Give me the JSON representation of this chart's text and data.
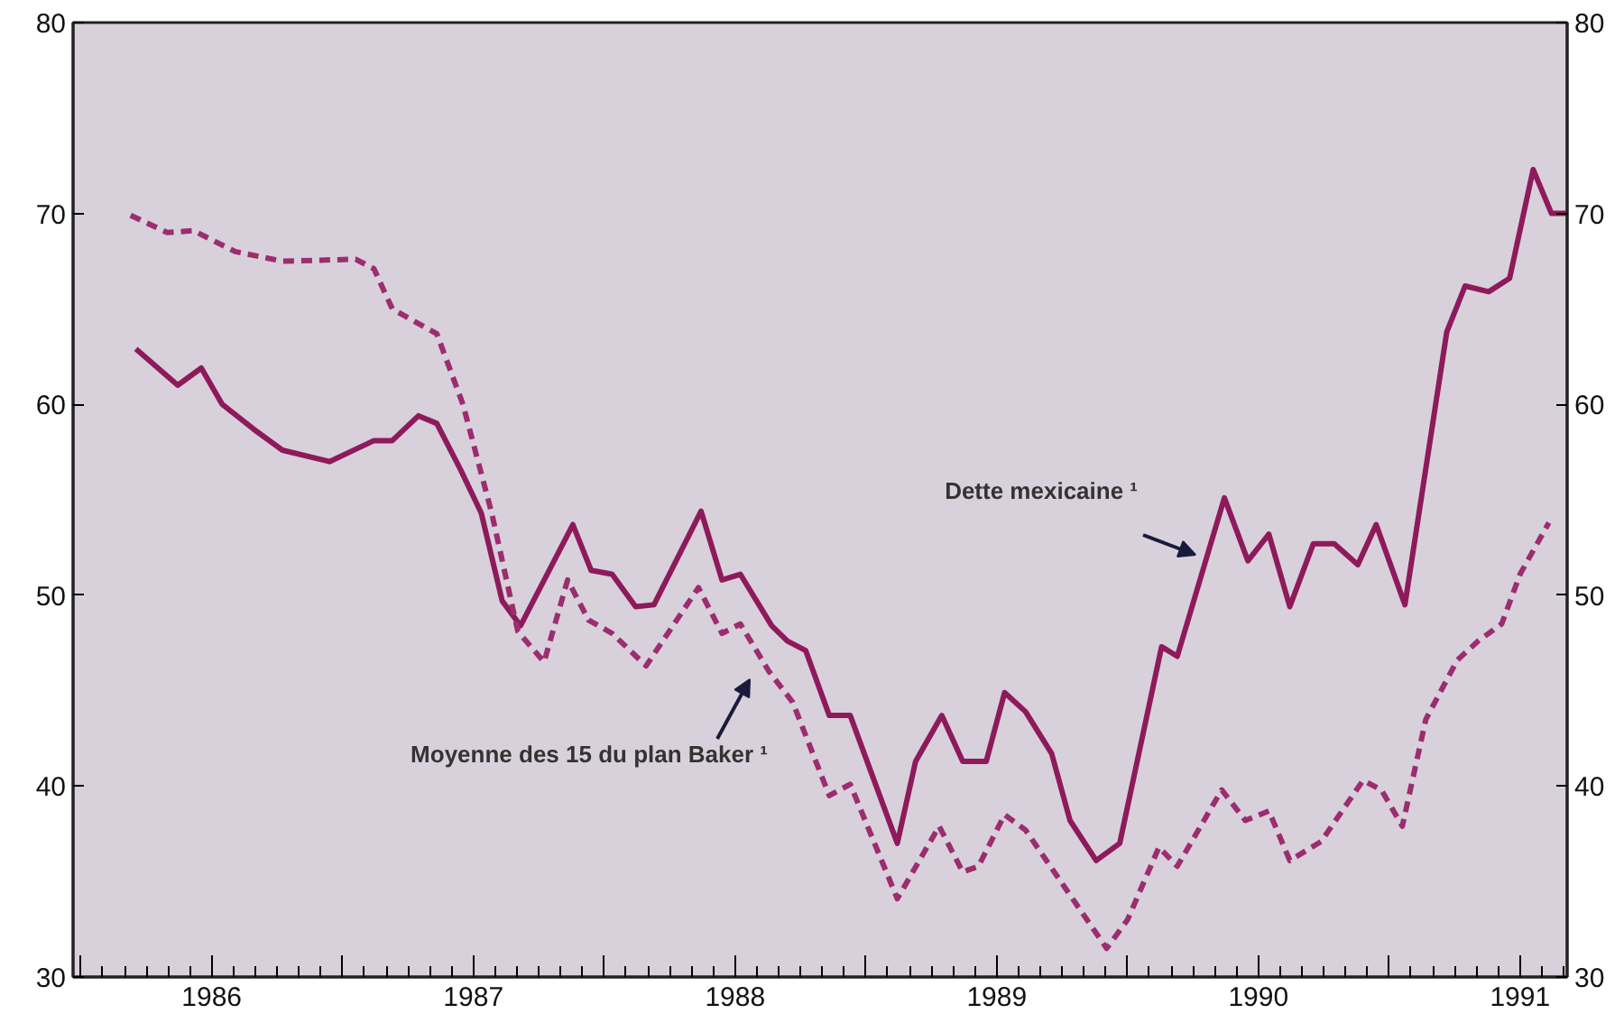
{
  "chart_data": {
    "type": "line",
    "xlim": [
      1985.97,
      1991.68
    ],
    "ylim": [
      30,
      80
    ],
    "y2lim": [
      30,
      80
    ],
    "xticks": [
      {
        "value": 1986,
        "label": null
      },
      {
        "value": 1986.5,
        "label": "1986"
      },
      {
        "value": 1987,
        "label": null
      },
      {
        "value": 1987.5,
        "label": "1987"
      },
      {
        "value": 1988,
        "label": null
      },
      {
        "value": 1988.5,
        "label": "1988"
      },
      {
        "value": 1989,
        "label": null
      },
      {
        "value": 1989.5,
        "label": "1989"
      },
      {
        "value": 1990,
        "label": null
      },
      {
        "value": 1990.5,
        "label": "1990"
      },
      {
        "value": 1991,
        "label": null
      },
      {
        "value": 1991.5,
        "label": "1991"
      }
    ],
    "yticks": [
      30,
      40,
      50,
      60,
      70,
      80
    ],
    "y2ticks": [
      30,
      40,
      50,
      60,
      70,
      80
    ],
    "grid": false,
    "series": [
      {
        "color": "#8e1a5c",
        "line_style": "solid",
        "x": [
          1986.21,
          1986.37,
          1986.46,
          1986.54,
          1986.66,
          1986.77,
          1986.95,
          1987.12,
          1987.19,
          1987.29,
          1987.36,
          1987.45,
          1987.53,
          1987.61,
          1987.68,
          1987.88,
          1987.95,
          1988.03,
          1988.12,
          1988.19,
          1988.37,
          1988.45,
          1988.52,
          1988.64,
          1988.7,
          1988.77,
          1988.86,
          1988.94,
          1989.12,
          1989.19,
          1989.29,
          1989.37,
          1989.46,
          1989.53,
          1989.61,
          1989.71,
          1989.78,
          1989.88,
          1989.97,
          1990.13,
          1990.19,
          1990.37,
          1990.46,
          1990.54,
          1990.62,
          1990.71,
          1990.79,
          1990.88,
          1990.95,
          1991.06,
          1991.22,
          1991.29,
          1991.38,
          1991.46,
          1991.55,
          1991.62,
          1991.68
        ],
        "values": [
          62.9,
          61.0,
          61.9,
          60.0,
          58.7,
          57.6,
          57.0,
          58.1,
          58.1,
          59.4,
          59.0,
          56.6,
          54.3,
          49.7,
          48.4,
          53.7,
          51.3,
          51.1,
          49.4,
          49.5,
          54.4,
          50.8,
          51.1,
          48.4,
          47.6,
          47.1,
          43.7,
          43.7,
          37.0,
          41.3,
          43.7,
          41.3,
          41.3,
          44.9,
          43.9,
          41.7,
          38.2,
          36.1,
          37.0,
          47.3,
          46.8,
          55.1,
          51.8,
          53.2,
          49.4,
          52.7,
          52.7,
          51.6,
          53.7,
          49.5,
          63.8,
          66.2,
          65.9,
          66.6,
          72.3,
          70.0,
          70.0
        ]
      },
      {
        "color": "#9c2d6e",
        "line_style": "dashed",
        "x": [
          1986.19,
          1986.33,
          1986.43,
          1986.59,
          1986.77,
          1987.05,
          1987.12,
          1987.19,
          1987.28,
          1987.36,
          1987.46,
          1987.57,
          1987.67,
          1987.77,
          1987.86,
          1987.94,
          1988.03,
          1988.16,
          1988.36,
          1988.45,
          1988.52,
          1988.63,
          1988.72,
          1988.86,
          1988.94,
          1989.12,
          1989.28,
          1989.37,
          1989.43,
          1989.53,
          1989.61,
          1989.74,
          1989.92,
          1990.0,
          1990.12,
          1990.19,
          1990.36,
          1990.45,
          1990.54,
          1990.62,
          1990.74,
          1990.9,
          1990.97,
          1991.05,
          1991.14,
          1991.26,
          1991.34,
          1991.43,
          1991.5,
          1991.61
        ],
        "values": [
          69.9,
          69.0,
          69.1,
          68.0,
          67.5,
          67.6,
          67.1,
          65.0,
          64.3,
          63.7,
          60.0,
          54.3,
          48.1,
          46.5,
          50.8,
          48.7,
          48.0,
          46.3,
          50.4,
          48.0,
          48.5,
          46.0,
          44.4,
          39.5,
          40.1,
          34.1,
          37.9,
          35.5,
          35.8,
          38.5,
          37.7,
          35.1,
          31.5,
          33.0,
          36.8,
          35.8,
          39.8,
          38.2,
          38.7,
          36.1,
          37.1,
          40.3,
          39.8,
          37.9,
          43.5,
          46.6,
          47.6,
          48.5,
          51.1,
          53.8
        ]
      }
    ],
    "annotations": [
      "Dette mexicaine ¹",
      "Moyenne des 15 du plan Baker ¹"
    ]
  }
}
